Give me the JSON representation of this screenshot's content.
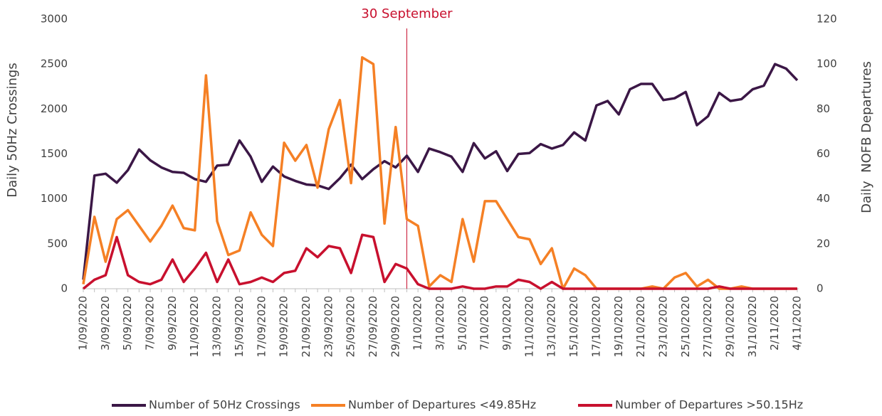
{
  "chart_data": {
    "type": "line",
    "annotation": "30 September",
    "ylabel": "Daily 50Hz Crossings",
    "y2label": "Daily  NOFB Departures",
    "categories": [
      "1/09/2020",
      null,
      "3/09/2020",
      null,
      "5/09/2020",
      null,
      "7/09/2020",
      null,
      "9/09/2020",
      null,
      "11/09/2020",
      null,
      "13/09/2020",
      null,
      "15/09/2020",
      null,
      "17/09/2020",
      null,
      "19/09/2020",
      null,
      "21/09/2020",
      null,
      "23/09/2020",
      null,
      "25/09/2020",
      null,
      "27/09/2020",
      null,
      "29/09/2020",
      null,
      "1/10/2020",
      null,
      "3/10/2020",
      null,
      "5/10/2020",
      null,
      "7/10/2020",
      null,
      "9/10/2020",
      null,
      "11/10/2020",
      null,
      "13/10/2020",
      null,
      "15/10/2020",
      null,
      "17/10/2020",
      null,
      "19/10/2020",
      null,
      "21/10/2020",
      null,
      "23/10/2020",
      null,
      "25/10/2020",
      null,
      "27/10/2020",
      null,
      "29/10/2020",
      null,
      "31/10/2020",
      null,
      "2/11/2020",
      null,
      "4/11/2020"
    ],
    "ylim": [
      0,
      3000
    ],
    "yticks": [
      0,
      500,
      1000,
      1500,
      2000,
      2500,
      3000
    ],
    "y2lim": [
      0,
      120
    ],
    "y2ticks": [
      0,
      20,
      40,
      60,
      80,
      100,
      120
    ],
    "series": [
      {
        "name": "Number of 50Hz Crossings",
        "color": "#3b1746",
        "values": [
          100,
          1260,
          1280,
          1180,
          1320,
          1550,
          1430,
          1350,
          1300,
          1290,
          1220,
          1190,
          1370,
          1380,
          1650,
          1470,
          1190,
          1360,
          1250,
          1200,
          1160,
          1150,
          1110,
          1230,
          1380,
          1220,
          1330,
          1420,
          1350,
          1480,
          1300,
          1560,
          1520,
          1470,
          1300,
          1620,
          1450,
          1530,
          1310,
          1500,
          1510,
          1610,
          1560,
          1600,
          1740,
          1650,
          2040,
          2090,
          1940,
          2220,
          2280,
          2280,
          2100,
          2120,
          2190,
          1820,
          1920,
          2180,
          2090,
          2110,
          2220,
          2260,
          2500,
          2450,
          2320
        ]
      },
      {
        "name": "Number of Departures <49.85Hz",
        "color": "#f58025",
        "axis": "y2",
        "values": [
          2,
          32,
          12,
          31,
          35,
          28,
          21,
          28,
          37,
          27,
          26,
          95,
          30,
          15,
          17,
          34,
          24,
          19,
          65,
          57,
          64,
          45,
          71,
          84,
          47,
          103,
          100,
          29,
          72,
          31,
          28,
          1,
          6,
          3,
          31,
          12,
          39,
          39,
          31,
          23,
          22,
          11,
          18,
          0,
          9,
          6,
          0,
          0,
          0,
          0,
          0,
          1,
          0,
          5,
          7,
          1,
          4,
          0,
          0,
          1,
          0,
          0,
          0,
          0,
          0
        ]
      },
      {
        "name": "Number of Departures >50.15Hz",
        "color": "#c8102e",
        "axis": "y2",
        "values": [
          0,
          4,
          6,
          23,
          6,
          3,
          2,
          4,
          13,
          3,
          9,
          16,
          3,
          13,
          2,
          3,
          5,
          3,
          7,
          8,
          18,
          14,
          19,
          18,
          7,
          24,
          23,
          3,
          11,
          9,
          2,
          0,
          0,
          0,
          1,
          0,
          0,
          1,
          1,
          4,
          3,
          0,
          3,
          0,
          0,
          0,
          0,
          0,
          0,
          0,
          0,
          0,
          0,
          0,
          0,
          0,
          0,
          1,
          0,
          0,
          0,
          0,
          0,
          0,
          0
        ]
      }
    ]
  }
}
